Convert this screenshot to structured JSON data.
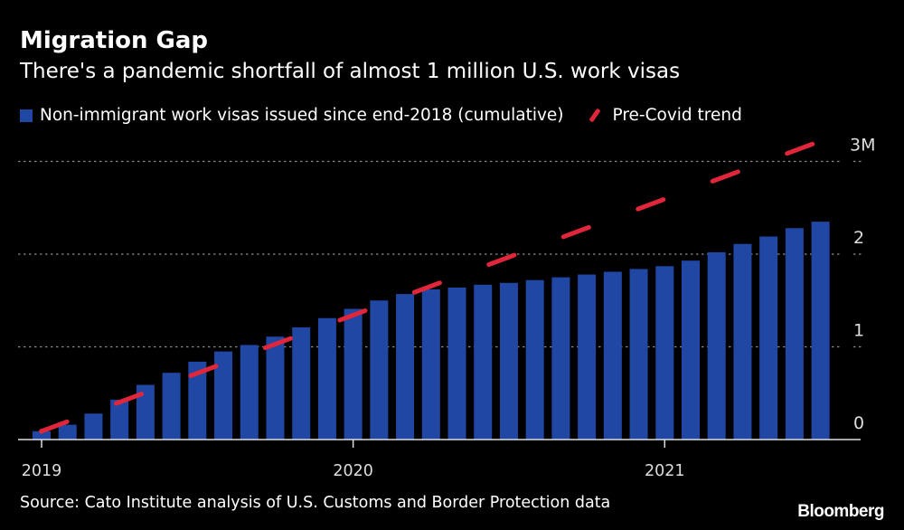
{
  "chart_data": {
    "type": "bar",
    "title": "Migration Gap",
    "subtitle": "There's a pandemic shortfall of almost 1 million U.S. work visas",
    "x": [
      "2019-01",
      "2019-02",
      "2019-03",
      "2019-04",
      "2019-05",
      "2019-06",
      "2019-07",
      "2019-08",
      "2019-09",
      "2019-10",
      "2019-11",
      "2019-12",
      "2020-01",
      "2020-02",
      "2020-03",
      "2020-04",
      "2020-05",
      "2020-06",
      "2020-07",
      "2020-08",
      "2020-09",
      "2020-10",
      "2020-11",
      "2020-12",
      "2021-01",
      "2021-02",
      "2021-03",
      "2021-04",
      "2021-05",
      "2021-06",
      "2021-07"
    ],
    "series": [
      {
        "name": "Non-immigrant work visas issued since end-2018 (cumulative)",
        "type": "bar",
        "color": "#1f47a3",
        "values": [
          0.09,
          0.16,
          0.28,
          0.43,
          0.59,
          0.72,
          0.84,
          0.95,
          1.02,
          1.11,
          1.21,
          1.31,
          1.41,
          1.5,
          1.57,
          1.62,
          1.64,
          1.67,
          1.69,
          1.72,
          1.75,
          1.78,
          1.81,
          1.84,
          1.87,
          1.93,
          2.02,
          2.11,
          2.19,
          2.28,
          2.35
        ]
      },
      {
        "name": "Pre-Covid trend",
        "type": "line",
        "style": "dashed",
        "color": "#e0263a",
        "values_endpoints": [
          0.09,
          3.22
        ]
      }
    ],
    "xtick_labels": [
      "2019",
      "2020",
      "2021"
    ],
    "ytick_labels": [
      "0",
      "1",
      "2",
      "3M"
    ],
    "yticks": [
      0,
      1,
      2,
      3
    ],
    "ylim": [
      0,
      3.1
    ],
    "grid": true,
    "y_axis_side": "right",
    "legend_placement": "top"
  },
  "source": "Source: Cato Institute analysis of U.S. Customs and Border Protection data",
  "logo": "Bloomberg"
}
